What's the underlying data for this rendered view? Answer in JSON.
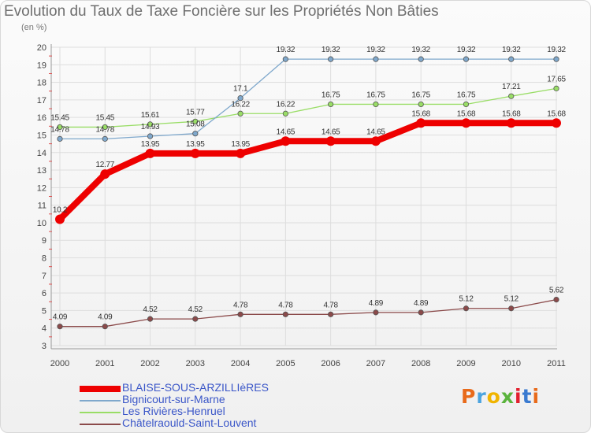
{
  "title": "Evolution du Taux de Taxe Foncière sur les Propriétés Non Bâties",
  "unit_label": "(en %)",
  "logo_text": "Proxiti",
  "colors": {
    "blaise": "#ee0000",
    "bignicourt": "#7fa8cc",
    "rivieres": "#99dd66",
    "chatelraould": "#8b4a4a",
    "grid": "#dddddd",
    "axis": "#999999",
    "label": "#444444",
    "logo": [
      "#e86a1a",
      "#4aa3df",
      "#f0b400",
      "#5ab33c",
      "#e2202e",
      "#3a7ad0",
      "#e86a1a"
    ]
  },
  "chart_data": {
    "type": "line",
    "title": "Evolution du Taux de Taxe Foncière sur les Propriétés Non Bâties",
    "ylabel": "(en %)",
    "xlabel": "",
    "categories": [
      "2000",
      "2001",
      "2002",
      "2003",
      "2004",
      "2005",
      "2006",
      "2007",
      "2008",
      "2009",
      "2010",
      "2011"
    ],
    "ylim": [
      3,
      20
    ],
    "yticks": [
      3,
      4,
      5,
      6,
      7,
      8,
      9,
      10,
      11,
      12,
      13,
      14,
      15,
      16,
      17,
      18,
      19,
      20
    ],
    "grid": true,
    "series": [
      {
        "name": "BLAISE-SOUS-ARZILLIèRES",
        "key": "blaise",
        "values": [
          10.2,
          12.77,
          13.95,
          13.95,
          13.95,
          14.65,
          14.65,
          14.65,
          15.68,
          15.68,
          15.68,
          15.68
        ],
        "labels": [
          "10.2",
          "12.77",
          "13.95",
          "13.95",
          "13.95",
          "14.65",
          "14.65",
          "14.65",
          "15.68",
          "15.68",
          "15.68",
          "15.68"
        ]
      },
      {
        "name": "Bignicourt-sur-Marne",
        "key": "bignicourt",
        "values": [
          14.78,
          14.78,
          14.93,
          15.08,
          17.1,
          19.32,
          19.32,
          19.32,
          19.32,
          19.32,
          19.32,
          19.32
        ],
        "labels": [
          "14.78",
          "14.78",
          "14.93",
          "15.08",
          "17.1",
          "19.32",
          "19.32",
          "19.32",
          "19.32",
          "19.32",
          "19.32",
          "19.32"
        ]
      },
      {
        "name": "Les Rivières-Henruel",
        "key": "rivieres",
        "values": [
          15.45,
          15.45,
          15.61,
          15.77,
          16.22,
          16.22,
          16.75,
          16.75,
          16.75,
          16.75,
          17.21,
          17.65
        ],
        "labels": [
          "15.45",
          "15.45",
          "15.61",
          "15.77",
          "16.22",
          "16.22",
          "16.75",
          "16.75",
          "16.75",
          "16.75",
          "17.21",
          "17.65"
        ]
      },
      {
        "name": "Châtelraould-Saint-Louvent",
        "key": "chatelraould",
        "values": [
          4.09,
          4.09,
          4.52,
          4.52,
          4.78,
          4.78,
          4.78,
          4.89,
          4.89,
          5.12,
          5.12,
          5.62
        ],
        "labels": [
          "4.09",
          "4.09",
          "4.52",
          "4.52",
          "4.78",
          "4.78",
          "4.78",
          "4.89",
          "4.89",
          "5.12",
          "5.12",
          "5.62"
        ]
      }
    ],
    "legend": [
      "BLAISE-SOUS-ARZILLIèRES",
      "Bignicourt-sur-Marne",
      "Les Rivières-Henruel",
      "Châtelraould-Saint-Louvent"
    ],
    "legend_position": "bottom-left"
  }
}
